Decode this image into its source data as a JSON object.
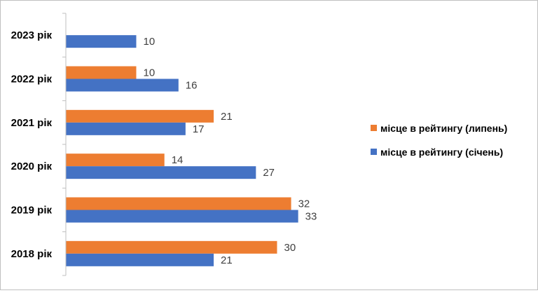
{
  "chart_data": {
    "type": "bar",
    "orientation": "horizontal",
    "categories": [
      "2023 рік",
      "2022 рік",
      "2021 рік",
      "2020 рік",
      "2019 рік",
      "2018 рік"
    ],
    "series": [
      {
        "name": "місце в рейтингу (липень)",
        "color": "#ED7D31",
        "values": [
          null,
          10,
          21,
          14,
          32,
          30
        ]
      },
      {
        "name": "місце в рейтингу (січень)",
        "color": "#4472C4",
        "values": [
          10,
          16,
          17,
          27,
          33,
          21
        ]
      }
    ],
    "xlim": [
      0,
      34
    ],
    "grid": false,
    "data_labels": true,
    "legend_position": "right"
  }
}
